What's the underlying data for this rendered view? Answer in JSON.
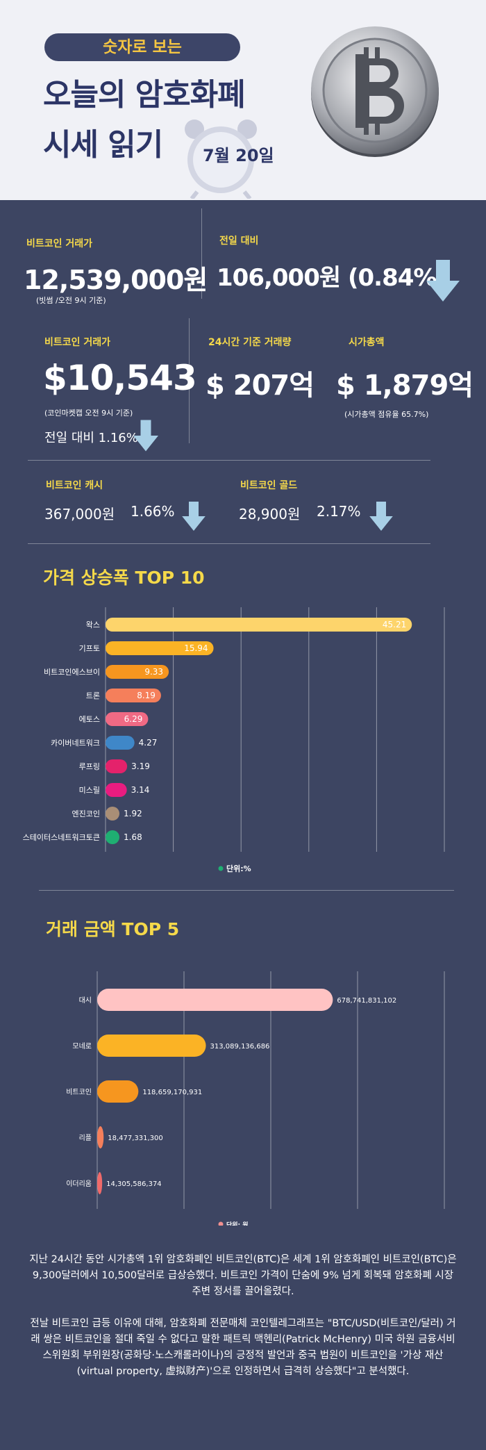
{
  "header": {
    "pill": "숫자로 보는",
    "title_line1": "오늘의 암호화폐",
    "title_line2": "시세 읽기",
    "date": "7월 20일"
  },
  "stats": {
    "krw_label": "비트코인 거래가",
    "krw_value": "12,539,000원",
    "krw_note": "(빗썸 /오전 9시 기준)",
    "krw_change_label": "전일 대비",
    "krw_change_value": "106,000원 (0.84%)",
    "usd_label": "비트코인 거래가",
    "usd_value": "$10,543",
    "usd_note": "(코인마켓캡 오전 9시 기준)",
    "usd_change": "전일 대비 1.16%",
    "volume_label": "24시간 기준 거래량",
    "volume_value": "$ 207억",
    "cap_label": "시가총액",
    "cap_value": "$ 1,879억",
    "cap_note": "(시가총액 점유율 65.7%)",
    "cash_label": "비트코인 캐시",
    "cash_value": "367,000원",
    "cash_change": "1.66%",
    "gold_label": "비트코인 골드",
    "gold_value": "28,900원",
    "gold_change": "2.17%"
  },
  "chart_data": [
    {
      "type": "bar",
      "title": "가격 상승폭 TOP 10",
      "orientation": "horizontal",
      "categories": [
        "왁스",
        "기프토",
        "비트코인에스브이",
        "트론",
        "에토스",
        "카이버네트워크",
        "루프링",
        "미스릴",
        "엔진코인",
        "스테이터스네트워크토큰"
      ],
      "values": [
        45.21,
        15.94,
        9.33,
        8.19,
        6.29,
        4.27,
        3.19,
        3.14,
        1.92,
        1.68
      ],
      "value_labels": [
        "45.21",
        "15.94",
        "9.33",
        "8.19",
        "6.29",
        "4.27",
        "3.19",
        "3.14",
        "1.92",
        "1.68"
      ],
      "colors": [
        "#fdd46b",
        "#fbb325",
        "#f6961f",
        "#f57f5b",
        "#f06a84",
        "#3f87c8",
        "#e4226b",
        "#e91c80",
        "#a98e76",
        "#1faf72"
      ],
      "legend": "단위:%",
      "legend_position": "bottom",
      "xlim": [
        0,
        50
      ],
      "grid": true
    },
    {
      "type": "bar",
      "title": "거래 금액 TOP 5",
      "orientation": "horizontal",
      "categories": [
        "대시",
        "모네로",
        "비트코인",
        "리플",
        "이더리움"
      ],
      "values": [
        678741831102,
        313089136686,
        118659170931,
        18477331300,
        14305586374
      ],
      "value_labels": [
        "678,741,831,102",
        "313,089,136,686",
        "118,659,170,931",
        "18,477,331,300",
        "14,305,586,374"
      ],
      "colors": [
        "#ffc3c3",
        "#fbb325",
        "#f6961f",
        "#f57f5b",
        "#f06a6a"
      ],
      "legend": "단위: 원",
      "legend_position": "bottom",
      "xlim": [
        0,
        1000000000000
      ],
      "grid": true
    }
  ],
  "body": {
    "para1": "지난 24시간 동안 시가총액 1위 암호화폐인 비트코인(BTC)은 세계 1위 암호화폐인 비트코인(BTC)은 9,300달러에서 10,500달러로 급상승했다. 비트코인 가격이 단숨에 9% 넘게 회복돼 암호화폐 시장 주변 정서를 끌어올렸다.",
    "para2": "전날 비트코인 급등 이유에 대해, 암호화폐 전문매체 코인텔레그래프는 \"BTC/USD(비트코인/달러) 거래 쌍은 비트코인을 절대 죽일 수 없다고 말한 패트릭 맥헨리(Patrick McHenry) 미국 하원 금융서비스위원회 부위원장(공화당·노스캐롤라이나)의 긍정적 발언과 중국 법원이 비트코인을 '가상 재산(virtual property, 虚拟财产)'으로 인정하면서 급격히 상승했다\"고 분석했다."
  },
  "colors": {
    "background": "#3d4562",
    "header_bg": "#f0f1f6",
    "title": "#2c3566",
    "label": "#f5d94a",
    "arrow": "#a8cfe6"
  }
}
